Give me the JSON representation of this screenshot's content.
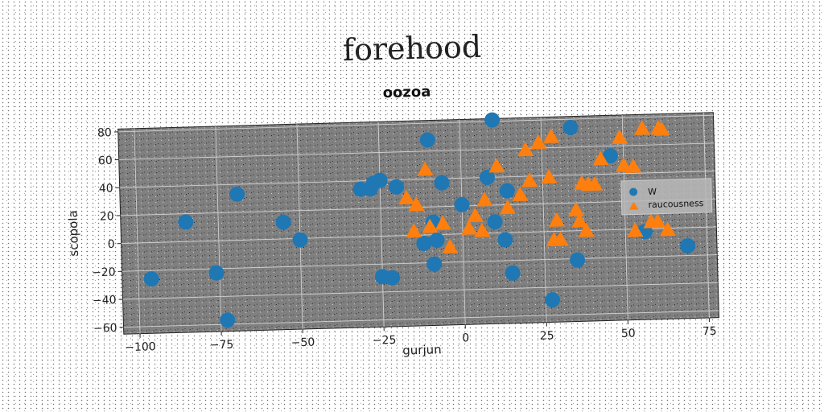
{
  "figure": {
    "supertitle": "forehood"
  },
  "chart_data": {
    "type": "scatter",
    "title": "oozoa",
    "xlabel": "gurjun",
    "ylabel": "scopola",
    "xlim": [
      -105,
      78
    ],
    "ylim": [
      -65,
      82
    ],
    "xticks": [
      -100,
      -75,
      -50,
      -25,
      0,
      25,
      50,
      75
    ],
    "yticks": [
      -60,
      -40,
      -20,
      0,
      20,
      40,
      60,
      80
    ],
    "grid": true,
    "legend_position": "right",
    "series": [
      {
        "name": "W",
        "marker": "circle",
        "color": "#1f77b4",
        "points": [
          [
            -96,
            -26
          ],
          [
            -85,
            14
          ],
          [
            -76,
            -23
          ],
          [
            -73,
            -57
          ],
          [
            -69,
            33
          ],
          [
            -55,
            12
          ],
          [
            -50,
            -1
          ],
          [
            -31,
            34
          ],
          [
            -28,
            34
          ],
          [
            -27,
            38
          ],
          [
            -25,
            40
          ],
          [
            -20,
            35
          ],
          [
            -25,
            -29
          ],
          [
            -22,
            -30
          ],
          [
            -10,
            68
          ],
          [
            -9,
            9
          ],
          [
            -8,
            -4
          ],
          [
            -12,
            -6
          ],
          [
            -9,
            -21
          ],
          [
            -6,
            37
          ],
          [
            0,
            21
          ],
          [
            8,
            40
          ],
          [
            10,
            81
          ],
          [
            10,
            8
          ],
          [
            14,
            30
          ],
          [
            13,
            -5
          ],
          [
            15,
            -29
          ],
          [
            27,
            -49
          ],
          [
            34,
            74
          ],
          [
            35,
            -21
          ],
          [
            46,
            53
          ],
          [
            56,
            -2
          ],
          [
            69,
            -13
          ]
        ]
      },
      {
        "name": "raucousness",
        "marker": "triangle",
        "color": "#ff7f0e",
        "points": [
          [
            -17,
            27
          ],
          [
            -14,
            22
          ],
          [
            -15,
            3
          ],
          [
            -10,
            6
          ],
          [
            -11,
            47
          ],
          [
            -6,
            8
          ],
          [
            -4,
            -9
          ],
          [
            2,
            4
          ],
          [
            4,
            13
          ],
          [
            6,
            2
          ],
          [
            7,
            24
          ],
          [
            11,
            48
          ],
          [
            14,
            18
          ],
          [
            18,
            27
          ],
          [
            20,
            59
          ],
          [
            21,
            37
          ],
          [
            24,
            64
          ],
          [
            28,
            68
          ],
          [
            27,
            39
          ],
          [
            29,
            8
          ],
          [
            28,
            -6
          ],
          [
            30,
            -6
          ],
          [
            35,
            15
          ],
          [
            36,
            7
          ],
          [
            37,
            34
          ],
          [
            39,
            33
          ],
          [
            38,
            0
          ],
          [
            41,
            33
          ],
          [
            43,
            51
          ],
          [
            49,
            66
          ],
          [
            50,
            46
          ],
          [
            53,
            45
          ],
          [
            53,
            -1
          ],
          [
            56,
            72
          ],
          [
            58,
            5
          ],
          [
            60,
            5
          ],
          [
            61,
            72
          ],
          [
            62,
            71
          ],
          [
            63,
            -1
          ]
        ]
      }
    ]
  }
}
